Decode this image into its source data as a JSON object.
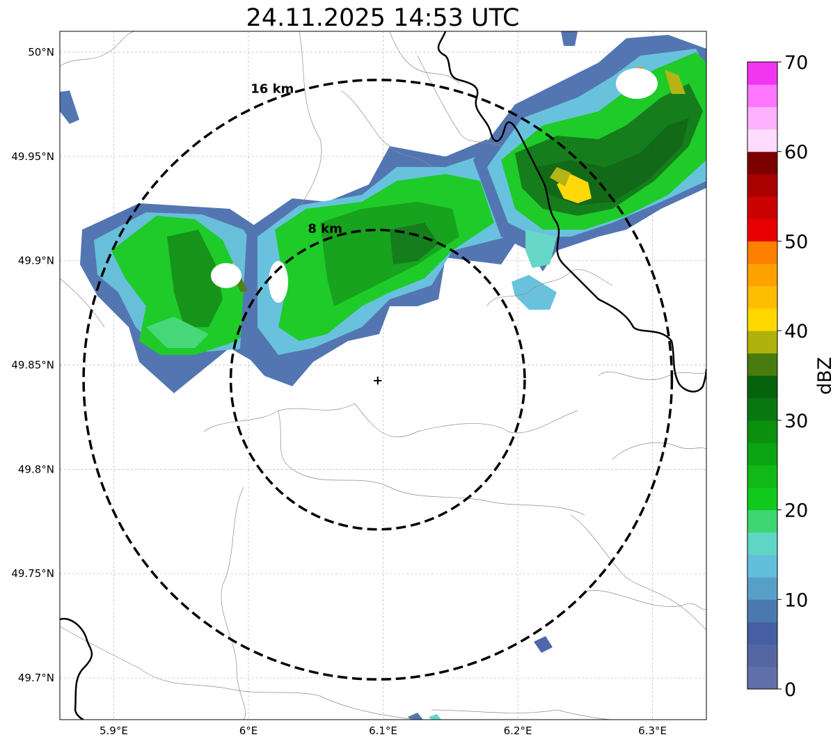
{
  "map": {
    "title": "24.11.2025 14:53 UTC",
    "lat_ticks": [
      "50°N",
      "49.95°N",
      "49.9°N",
      "49.85°N",
      "49.8°N",
      "49.75°N",
      "49.7°N"
    ],
    "lon_ticks": [
      "5.9°E",
      "6°E",
      "6.1°E",
      "6.2°E",
      "6.3°E"
    ],
    "lat_values": [
      50.0,
      49.95,
      49.9,
      49.85,
      49.8,
      49.75,
      49.7
    ],
    "lon_values": [
      5.9,
      6.0,
      6.1,
      6.2,
      6.3
    ],
    "extent": {
      "lon_min": 5.86,
      "lon_max": 6.34,
      "lat_min": 49.68,
      "lat_max": 50.01
    },
    "radar_center": {
      "lon": 6.096,
      "lat": 49.843
    },
    "range_rings": [
      {
        "label": "8 km",
        "radius_deg_lat": 0.0718
      },
      {
        "label": "16 km",
        "radius_deg_lat": 0.1437
      }
    ],
    "colorbar": {
      "label": "dBZ",
      "tick_labels": [
        "0",
        "10",
        "20",
        "30",
        "40",
        "50",
        "60",
        "70"
      ],
      "min": 0,
      "max": 70,
      "colors": [
        "#6070a8",
        "#5567a3",
        "#465fa3",
        "#4a79b0",
        "#589fc8",
        "#62bfdc",
        "#5fd5c5",
        "#3ed673",
        "#12c91e",
        "#10b915",
        "#0ca411",
        "#0a8f0e",
        "#097710",
        "#06620b",
        "#477b0d",
        "#b0b10a",
        "#ffd700",
        "#ffbd00",
        "#ffa200",
        "#ff7f00",
        "#e80000",
        "#cb0000",
        "#a90000",
        "#7d0000",
        "#ffdcff",
        "#ffb2ff",
        "#ff76ff",
        "#f136f1"
      ]
    }
  }
}
